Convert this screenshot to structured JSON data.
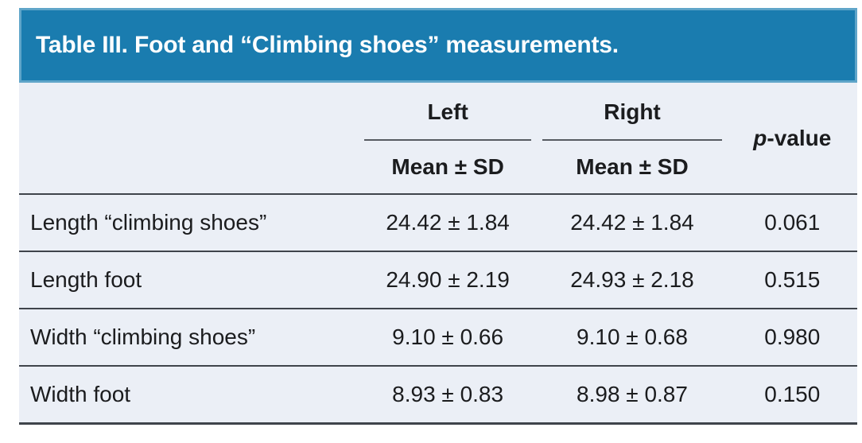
{
  "title": "Table III. Foot and “Climbing shoes” measurements.",
  "header": {
    "left_label": "Left",
    "right_label": "Right",
    "pvalue_label": "p-value",
    "left_subheader": "Mean ± SD",
    "right_subheader": "Mean ± SD"
  },
  "rows": [
    {
      "label": "Length “climbing shoes”",
      "left": "24.42 ± 1.84",
      "right": "24.42 ± 1.84",
      "p": "0.061"
    },
    {
      "label": "Length foot",
      "left": "24.90 ± 2.19",
      "right": "24.93 ± 2.18",
      "p": "0.515"
    },
    {
      "label": "Width “climbing shoes”",
      "left": "9.10 ± 0.66",
      "right": "9.10 ± 0.68",
      "p": "0.980"
    },
    {
      "label": "Width foot",
      "left": "8.93 ± 0.83",
      "right": "8.98 ± 0.87",
      "p": "0.150"
    }
  ],
  "colors": {
    "header_bg": "#1A7CAF",
    "header_border": "#5FA5C9",
    "title_text": "#FFFFFF",
    "body_bg": "#EBEFF6",
    "line_strong": "#3F444B",
    "line_light": "#565B61",
    "text": "#1B1C1E"
  }
}
